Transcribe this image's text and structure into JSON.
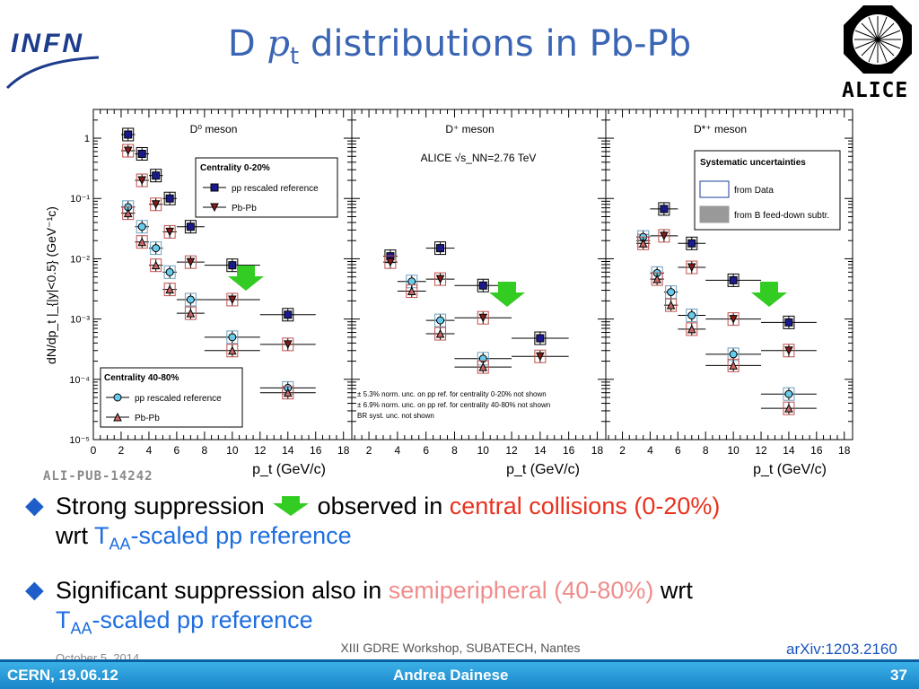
{
  "slide": {
    "title_prefix": "D ",
    "title_var": "p",
    "title_sub": "t",
    "title_suffix": " distributions in Pb-Pb",
    "logo_left": "INFN",
    "logo_right": "ALICE",
    "ali_pub": "ALI-PUB-14242",
    "bullet1": {
      "part1": "Strong suppression",
      "part2": " observed in ",
      "red": "central collisions (0-20%)",
      "line2_prefix": "wrt ",
      "blue_T": "T",
      "blue_sub": "AA",
      "blue_rest": "-scaled pp reference"
    },
    "bullet2": {
      "part1": "Significant suppression also in ",
      "pink": "semiperipheral (40-80%)",
      "part2": " wrt",
      "blue_T": "T",
      "blue_sub": "AA",
      "blue_rest": "-scaled pp reference"
    },
    "date": "October 5, 2014",
    "workshop": "XIII GDRE Workshop, SUBATECH, Nantes",
    "arxiv": "arXiv:1203.2160",
    "footer_left": "CERN, 19.06.12",
    "footer_center": "Andrea Dainese",
    "footer_right": "37"
  },
  "colors": {
    "title": "#3a64b4",
    "red": "#e8321e",
    "blue": "#1e6ee0",
    "pink": "#f08c8c",
    "arrow": "#33cc22",
    "pp_central": "#1a1a8c",
    "pbpb_central": "#8b1a1a",
    "pp_peripheral": "#66ccee",
    "pbpb_peripheral": "#cc6666"
  },
  "chart_data": [
    {
      "type": "scatter",
      "title": "D⁰ meson",
      "ylabel": "dN/dp_t |_{|y|<0.5} (GeV⁻¹c)",
      "xlabel": "p_t (GeV/c)",
      "xlim": [
        0,
        18
      ],
      "ylim": [
        1e-05,
        3
      ],
      "yscale": "log",
      "x_ticks": [
        "0",
        "2",
        "4",
        "6",
        "8",
        "10",
        "12",
        "14",
        "16",
        "18"
      ],
      "y_ticks": [
        "10⁻⁵",
        "10⁻⁴",
        "10⁻³",
        "10⁻²",
        "10⁻¹",
        "1"
      ],
      "legend_central": {
        "title": "Centrality 0-20%",
        "entries": [
          "pp rescaled reference",
          "Pb-Pb"
        ]
      },
      "legend_peripheral": {
        "title": "Centrality 40-80%",
        "entries": [
          "pp rescaled reference",
          "Pb-Pb"
        ]
      },
      "series": [
        {
          "name": "pp rescaled reference",
          "group": "Centrality 0-20%",
          "x": [
            2.5,
            3.5,
            4.5,
            5.5,
            7,
            10,
            14
          ],
          "xerr": [
            0.5,
            0.5,
            0.5,
            0.5,
            1,
            2,
            2
          ],
          "y": [
            1.15,
            0.55,
            0.24,
            0.1,
            0.034,
            0.0078,
            0.00118
          ]
        },
        {
          "name": "Pb-Pb",
          "group": "Centrality 0-20%",
          "x": [
            2.5,
            3.5,
            4.5,
            5.5,
            7,
            10,
            14
          ],
          "xerr": [
            0.5,
            0.5,
            0.5,
            0.5,
            1,
            2,
            2
          ],
          "y": [
            0.62,
            0.2,
            0.08,
            0.028,
            0.0088,
            0.0021,
            0.00038
          ]
        },
        {
          "name": "pp rescaled reference",
          "group": "Centrality 40-80%",
          "x": [
            2.5,
            3.5,
            4.5,
            5.5,
            7,
            10,
            14
          ],
          "xerr": [
            0.5,
            0.5,
            0.5,
            0.5,
            1,
            2,
            2
          ],
          "y": [
            0.072,
            0.034,
            0.015,
            0.006,
            0.0021,
            0.0005,
            7.2e-05
          ]
        },
        {
          "name": "Pb-Pb",
          "group": "Centrality 40-80%",
          "x": [
            2.5,
            3.5,
            4.5,
            5.5,
            7,
            10,
            14
          ],
          "xerr": [
            0.5,
            0.5,
            0.5,
            0.5,
            1,
            2,
            2
          ],
          "y": [
            0.057,
            0.019,
            0.0078,
            0.0031,
            0.00125,
            0.0003,
            6e-05
          ]
        }
      ]
    },
    {
      "type": "scatter",
      "title": "D⁺ meson",
      "annotation": "ALICE  √s_NN=2.76 TeV",
      "xlabel": "p_t (GeV/c)",
      "xlim": [
        0,
        18
      ],
      "ylim": [
        1e-05,
        3
      ],
      "yscale": "log",
      "x_ticks": [
        "2",
        "4",
        "6",
        "8",
        "10",
        "12",
        "14",
        "16",
        "18"
      ],
      "notes": [
        "± 5.3% norm. unc. on pp ref. for centrality 0-20% not shown",
        "± 6.9% norm. unc. on pp ref. for centrality 40-80% not shown",
        "BR syst. unc. not shown"
      ],
      "series": [
        {
          "name": "pp rescaled reference",
          "group": "Centrality 0-20%",
          "x": [
            3.5,
            7,
            10,
            14
          ],
          "xerr": [
            0.5,
            1,
            2,
            2
          ],
          "y": [
            0.011,
            0.015,
            0.0036,
            0.00048
          ]
        },
        {
          "name": "Pb-Pb",
          "group": "Centrality 0-20%",
          "x": [
            3.5,
            7,
            10,
            14
          ],
          "xerr": [
            0.5,
            1,
            2,
            2
          ],
          "y": [
            0.0088,
            0.0046,
            0.00105,
            0.00024
          ]
        },
        {
          "name": "pp rescaled reference",
          "group": "Centrality 40-80%",
          "x": [
            5,
            7,
            10,
            14
          ],
          "xerr": [
            1,
            1,
            2,
            2
          ],
          "y": [
            0.0042,
            0.00095,
            0.00022,
            0.0
          ]
        },
        {
          "name": "Pb-Pb",
          "group": "Centrality 40-80%",
          "x": [
            5,
            7,
            10
          ],
          "xerr": [
            1,
            1,
            2
          ],
          "y": [
            0.0029,
            0.00057,
            0.00016
          ]
        }
      ]
    },
    {
      "type": "scatter",
      "title": "D*⁺ meson",
      "xlabel": "p_t (GeV/c)",
      "xlim": [
        0,
        18
      ],
      "ylim": [
        1e-05,
        3
      ],
      "yscale": "log",
      "x_ticks": [
        "2",
        "4",
        "6",
        "8",
        "10",
        "12",
        "14",
        "16",
        "18"
      ],
      "legend_syst": {
        "title": "Systematic uncertainties",
        "entries": [
          "from Data",
          "from B feed-down subtr."
        ]
      },
      "series": [
        {
          "name": "pp rescaled reference",
          "group": "Centrality 0-20%",
          "x": [
            5,
            7,
            10,
            14
          ],
          "xerr": [
            1,
            1,
            2,
            2
          ],
          "y": [
            0.067,
            0.018,
            0.0044,
            0.00088
          ]
        },
        {
          "name": "Pb-Pb",
          "group": "Centrality 0-20%",
          "x": [
            3.5,
            5,
            7,
            10,
            14
          ],
          "xerr": [
            0.5,
            1,
            1,
            2,
            2
          ],
          "y": [
            0.02,
            0.024,
            0.0072,
            0.001,
            0.0003
          ]
        },
        {
          "name": "pp rescaled reference",
          "group": "Centrality 40-80%",
          "x": [
            3.5,
            4.5,
            5.5,
            7,
            10,
            14
          ],
          "xerr": [
            0.5,
            0.5,
            0.5,
            1,
            2,
            2
          ],
          "y": [
            0.023,
            0.0058,
            0.0028,
            0.00115,
            0.00026,
            5.7e-05
          ]
        },
        {
          "name": "Pb-Pb",
          "group": "Centrality 40-80%",
          "x": [
            3.5,
            4.5,
            5.5,
            7,
            10,
            14
          ],
          "xerr": [
            0.5,
            0.5,
            0.5,
            1,
            2,
            2
          ],
          "y": [
            0.018,
            0.0046,
            0.0017,
            0.00068,
            0.00017,
            3.3e-05
          ]
        }
      ]
    }
  ]
}
